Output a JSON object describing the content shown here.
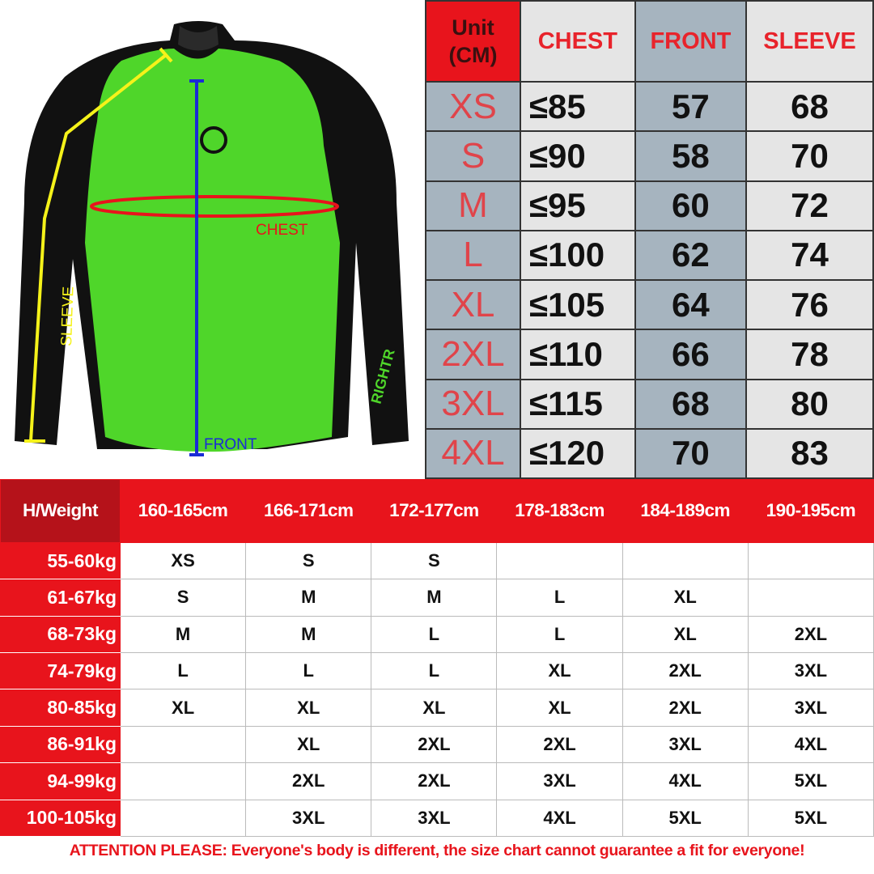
{
  "shirt": {
    "labels": {
      "sleeve": "SLEEVE",
      "chest": "CHEST",
      "front": "FRONT"
    },
    "logo_text": "RIGHTR",
    "colors": {
      "body": "#4fd62a",
      "sleeves": "#111111",
      "sleeve_line": "#f5f21a",
      "chest_line": "#e8141c",
      "front_line": "#1a2bd6"
    }
  },
  "measure_table": {
    "headers": {
      "unit": "Unit (CM)",
      "chest": "CHEST",
      "front": "FRONT",
      "sleeve": "SLEEVE"
    },
    "rows": [
      {
        "size": "XS",
        "chest": "≤85",
        "front": "57",
        "sleeve": "68"
      },
      {
        "size": "S",
        "chest": "≤90",
        "front": "58",
        "sleeve": "70"
      },
      {
        "size": "M",
        "chest": "≤95",
        "front": "60",
        "sleeve": "72"
      },
      {
        "size": "L",
        "chest": "≤100",
        "front": "62",
        "sleeve": "74"
      },
      {
        "size": "XL",
        "chest": "≤105",
        "front": "64",
        "sleeve": "76"
      },
      {
        "size": "2XL",
        "chest": "≤110",
        "front": "66",
        "sleeve": "78"
      },
      {
        "size": "3XL",
        "chest": "≤115",
        "front": "68",
        "sleeve": "80"
      },
      {
        "size": "4XL",
        "chest": "≤120",
        "front": "70",
        "sleeve": "83"
      }
    ]
  },
  "fit_table": {
    "corner": "H/Weight",
    "heights": [
      "160-165cm",
      "166-171cm",
      "172-177cm",
      "178-183cm",
      "184-189cm",
      "190-195cm"
    ],
    "rows": [
      {
        "weight": "55-60kg",
        "sizes": [
          "XS",
          "S",
          "S",
          "",
          "",
          ""
        ]
      },
      {
        "weight": "61-67kg",
        "sizes": [
          "S",
          "M",
          "M",
          "L",
          "XL",
          ""
        ]
      },
      {
        "weight": "68-73kg",
        "sizes": [
          "M",
          "M",
          "L",
          "L",
          "XL",
          "2XL"
        ]
      },
      {
        "weight": "74-79kg",
        "sizes": [
          "L",
          "L",
          "L",
          "XL",
          "2XL",
          "3XL"
        ]
      },
      {
        "weight": "80-85kg",
        "sizes": [
          "XL",
          "XL",
          "XL",
          "XL",
          "2XL",
          "3XL"
        ]
      },
      {
        "weight": "86-91kg",
        "sizes": [
          "",
          "XL",
          "2XL",
          "2XL",
          "3XL",
          "4XL"
        ]
      },
      {
        "weight": "94-99kg",
        "sizes": [
          "",
          "2XL",
          "2XL",
          "3XL",
          "4XL",
          "5XL"
        ]
      },
      {
        "weight": "100-105kg",
        "sizes": [
          "",
          "3XL",
          "3XL",
          "4XL",
          "5XL",
          "5XL"
        ]
      }
    ]
  },
  "footer": "ATTENTION PLEASE: Everyone's body is different, the size chart cannot guarantee a fit for everyone!"
}
